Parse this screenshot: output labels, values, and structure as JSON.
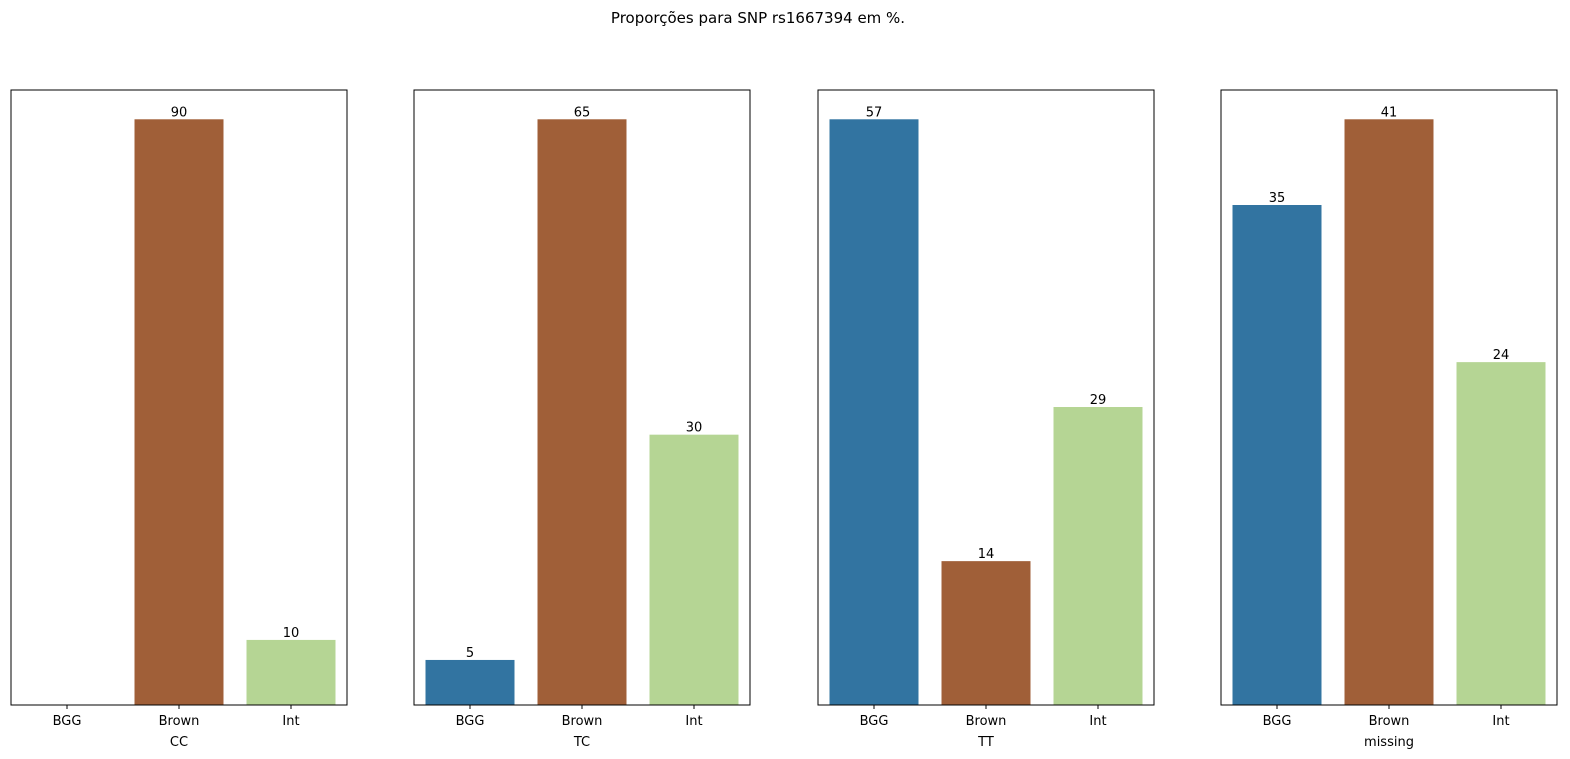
{
  "figure": {
    "suptitle": "Proporções para SNP rs1667394 em %."
  },
  "colors": {
    "BGG": "#3274a1",
    "Brown": "#a05f38",
    "Int": "#b5d594"
  },
  "chart_data": [
    {
      "type": "bar",
      "xlabel": "CC",
      "categories": [
        "BGG",
        "Brown",
        "Int"
      ],
      "values": [
        0,
        90,
        10
      ],
      "labels": [
        null,
        "90",
        "10"
      ],
      "ylim": [
        0,
        94.5
      ]
    },
    {
      "type": "bar",
      "xlabel": "TC",
      "categories": [
        "BGG",
        "Brown",
        "Int"
      ],
      "values": [
        5,
        65,
        30
      ],
      "labels": [
        "5",
        "65",
        "30"
      ],
      "ylim": [
        0,
        68.25
      ]
    },
    {
      "type": "bar",
      "xlabel": "TT",
      "categories": [
        "BGG",
        "Brown",
        "Int"
      ],
      "values": [
        57,
        14,
        29
      ],
      "labels": [
        "57",
        "14",
        "29"
      ],
      "ylim": [
        0,
        59.85
      ]
    },
    {
      "type": "bar",
      "xlabel": "missing",
      "categories": [
        "BGG",
        "Brown",
        "Int"
      ],
      "values": [
        35,
        41,
        24
      ],
      "labels": [
        "35",
        "41",
        "24"
      ],
      "ylim": [
        0,
        43.05
      ]
    }
  ]
}
